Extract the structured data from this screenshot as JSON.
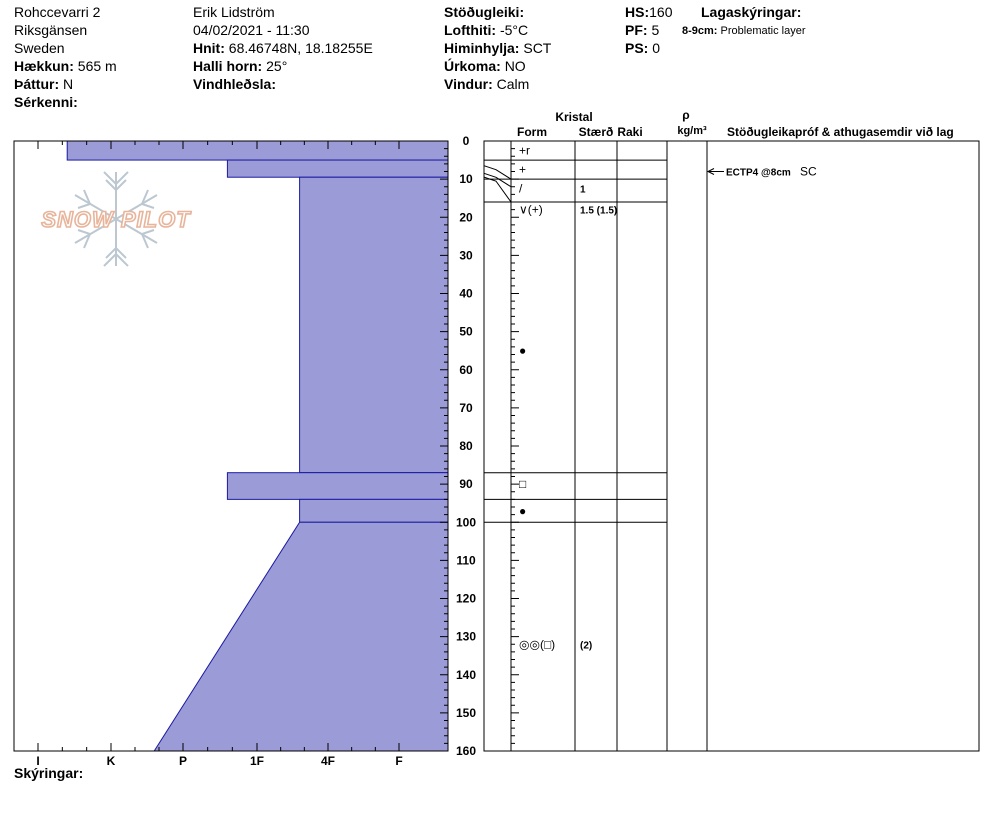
{
  "site": {
    "name": "Rohccevarri 2",
    "region": "Riksgänsen",
    "country": "Sweden",
    "elevation_label": "Hækkun:",
    "elevation": "565 m",
    "aspect_label": "Þáttur:",
    "aspect": "N",
    "features_label": "Sérkenni:"
  },
  "observer": {
    "name": "Erik Lidström",
    "datetime": "04/02/2021 - 11:30",
    "coords_label": "Hnit:",
    "coords": "68.46748N, 18.18255E",
    "slope_label": "Halli horn:",
    "slope": "25°",
    "wind_loading_label": "Vindhleðsla:"
  },
  "conditions": {
    "stability_label": "Stöðugleiki:",
    "air_temp_label": "Lofthiti:",
    "air_temp": "-5°C",
    "sky_label": "Himinhylja:",
    "sky": "SCT",
    "precip_label": "Úrkoma:",
    "precip": "NO",
    "wind_label": "Vindur:",
    "wind": "Calm"
  },
  "depths": {
    "hs_label": "HS:",
    "hs": "160",
    "pf_label": "PF:",
    "pf": "5",
    "ps_label": "PS:",
    "ps": "0"
  },
  "layer_notes": {
    "label": "Lagaskýringar:",
    "depth": "8-9cm:",
    "text": "Problematic layer"
  },
  "columns": {
    "crystal": "Kristal",
    "form": "Form",
    "size": "Stærð",
    "moisture": "Raki",
    "density_symbol": "ρ",
    "density_unit": "kg/m³",
    "tests": "Stöðugleikapróf & athugasemdir við lag"
  },
  "legend_label": "Skýringar:",
  "chart_data": {
    "type": "snow-profile",
    "depth_axis": {
      "min": 0,
      "max": 160,
      "ticks": [
        0,
        10,
        20,
        30,
        40,
        50,
        60,
        70,
        80,
        90,
        100,
        110,
        120,
        130,
        140,
        150,
        160
      ]
    },
    "hardness_scale": [
      "I",
      "K",
      "P",
      "1F",
      "4F",
      "F"
    ],
    "hardness_layers": [
      {
        "top": 0,
        "bottom": 5,
        "hardness_index": 0.4
      },
      {
        "top": 5,
        "bottom": 9.5,
        "hardness_index": 2.6
      },
      {
        "top": 9.5,
        "bottom": 87,
        "hardness_index": 3.6
      },
      {
        "top": 87,
        "bottom": 94,
        "hardness_index": 2.6
      },
      {
        "top": 94,
        "bottom": 100,
        "hardness_index": 3.6
      },
      {
        "top": 100,
        "bottom": 160,
        "hardness_index_top": 3.6,
        "hardness_index_bottom": 1.6
      }
    ],
    "layer_boundaries": [
      0,
      5,
      10,
      16,
      87,
      94,
      100
    ],
    "grains": [
      {
        "depth": 2.5,
        "form": "+r",
        "size": ""
      },
      {
        "depth": 7.5,
        "form": "+",
        "size": ""
      },
      {
        "depth": 12.5,
        "form": "/",
        "size": "1"
      },
      {
        "depth": 18,
        "form": "∨(+)",
        "size": "1.5 (1.5)"
      },
      {
        "depth": 55,
        "form": "●",
        "size": ""
      },
      {
        "depth": 90,
        "form": "□",
        "size": ""
      },
      {
        "depth": 97,
        "form": "●",
        "size": ""
      },
      {
        "depth": 132,
        "form": "◎◎(□)",
        "size": "(2)"
      }
    ],
    "tests": [
      {
        "depth": 8,
        "result": "ECTP4 @8cm",
        "note": "SC"
      }
    ],
    "fill_color": "#9b9bd8",
    "stroke_color": "#1a1aa0"
  }
}
